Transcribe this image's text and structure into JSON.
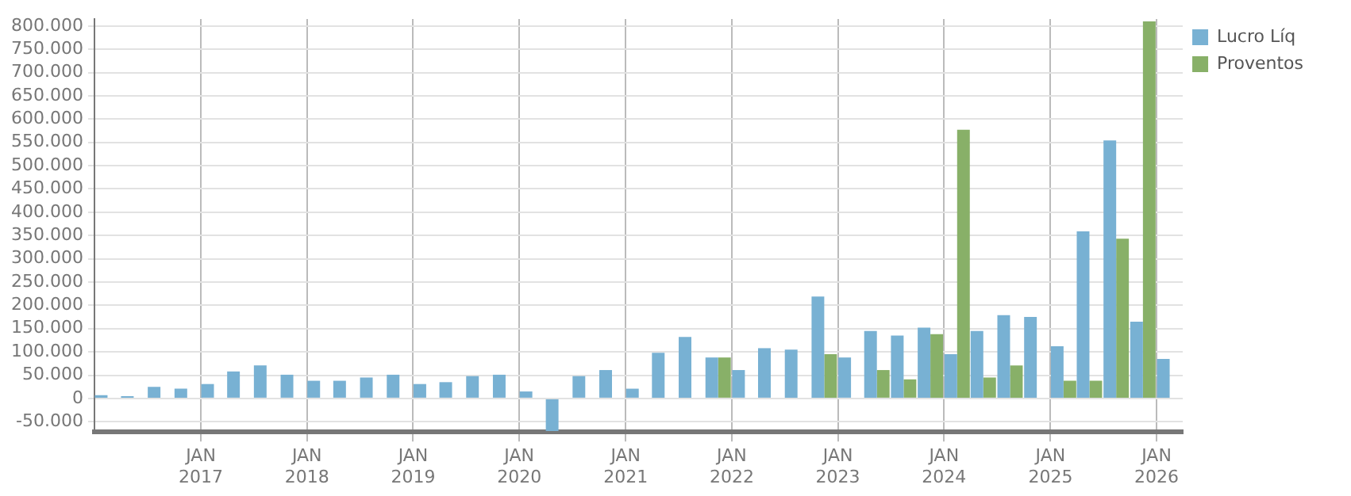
{
  "chart_data": {
    "type": "bar",
    "x": [
      "2016-02-15",
      "2016-05-15",
      "2016-08-15",
      "2016-11-15",
      "2017-02-15",
      "2017-05-15",
      "2017-08-15",
      "2017-11-15",
      "2018-02-15",
      "2018-05-15",
      "2018-08-15",
      "2018-11-15",
      "2019-02-15",
      "2019-05-15",
      "2019-08-15",
      "2019-11-15",
      "2020-02-15",
      "2020-05-15",
      "2020-08-15",
      "2020-11-15",
      "2021-02-15",
      "2021-05-15",
      "2021-08-15",
      "2021-11-15",
      "2022-02-15",
      "2022-05-15",
      "2022-08-15",
      "2022-11-15",
      "2023-02-15",
      "2023-05-15",
      "2023-08-15",
      "2023-11-15",
      "2024-02-15",
      "2024-05-15",
      "2024-08-15",
      "2024-11-15",
      "2025-02-15",
      "2025-05-15",
      "2025-08-15",
      "2025-11-15",
      "2026-02-15"
    ],
    "series": [
      {
        "name": "Lucro Líq",
        "color": "#78b1d3",
        "values": [
          7000,
          5000,
          25000,
          21000,
          31000,
          58000,
          71000,
          51000,
          38000,
          38000,
          45000,
          51000,
          31000,
          35000,
          48000,
          51000,
          15000,
          -70000,
          48000,
          61000,
          21000,
          98000,
          132000,
          88000,
          61000,
          108000,
          105000,
          219000,
          88000,
          145000,
          135000,
          152000,
          95000,
          145000,
          179000,
          175000,
          112000,
          359000,
          554000,
          165000,
          85000
        ]
      },
      {
        "name": "Proventos",
        "color": "#88b068",
        "values": [
          0,
          0,
          0,
          0,
          0,
          0,
          0,
          0,
          0,
          0,
          0,
          0,
          0,
          0,
          0,
          0,
          0,
          0,
          0,
          0,
          0,
          0,
          0,
          88000,
          0,
          0,
          0,
          95000,
          0,
          61000,
          41000,
          138000,
          577000,
          45000,
          71000,
          0,
          38000,
          38000,
          343000,
          810000,
          0
        ]
      }
    ],
    "xlim": [
      "2016-01-01",
      "2026-04-01"
    ],
    "xticks": [
      {
        "value": "2017-01",
        "label": "JAN 2017"
      },
      {
        "value": "2018-01",
        "label": "JAN 2018"
      },
      {
        "value": "2019-01",
        "label": "JAN 2019"
      },
      {
        "value": "2020-01",
        "label": "JAN 2020"
      },
      {
        "value": "2021-01",
        "label": "JAN 2021"
      },
      {
        "value": "2022-01",
        "label": "JAN 2022"
      },
      {
        "value": "2023-01",
        "label": "JAN 2023"
      },
      {
        "value": "2024-01",
        "label": "JAN 2024"
      },
      {
        "value": "2025-01",
        "label": "JAN 2025"
      },
      {
        "value": "2026-01",
        "label": "JAN 2026"
      }
    ],
    "ylim": [
      -72000,
      815000
    ],
    "yticks": [
      {
        "value": -50000,
        "label": "-50.000"
      },
      0,
      {
        "value": 50000,
        "label": "50.000"
      },
      {
        "value": 100000,
        "label": "100.000"
      },
      {
        "value": 150000,
        "label": "150.000"
      },
      {
        "value": 200000,
        "label": "200.000"
      },
      {
        "value": 250000,
        "label": "250.000"
      },
      {
        "value": 300000,
        "label": "300.000"
      },
      {
        "value": 350000,
        "label": "350.000"
      },
      {
        "value": 400000,
        "label": "400.000"
      },
      {
        "value": 450000,
        "label": "450.000"
      },
      {
        "value": 500000,
        "label": "500.000"
      },
      {
        "value": 550000,
        "label": "550.000"
      },
      {
        "value": 600000,
        "label": "600.000"
      },
      {
        "value": 650000,
        "label": "650.000"
      },
      {
        "value": 700000,
        "label": "700.000"
      },
      {
        "value": 750000,
        "label": "750.000"
      },
      {
        "value": 800000,
        "label": "800.000"
      }
    ],
    "grid": true,
    "legend": "top right"
  }
}
